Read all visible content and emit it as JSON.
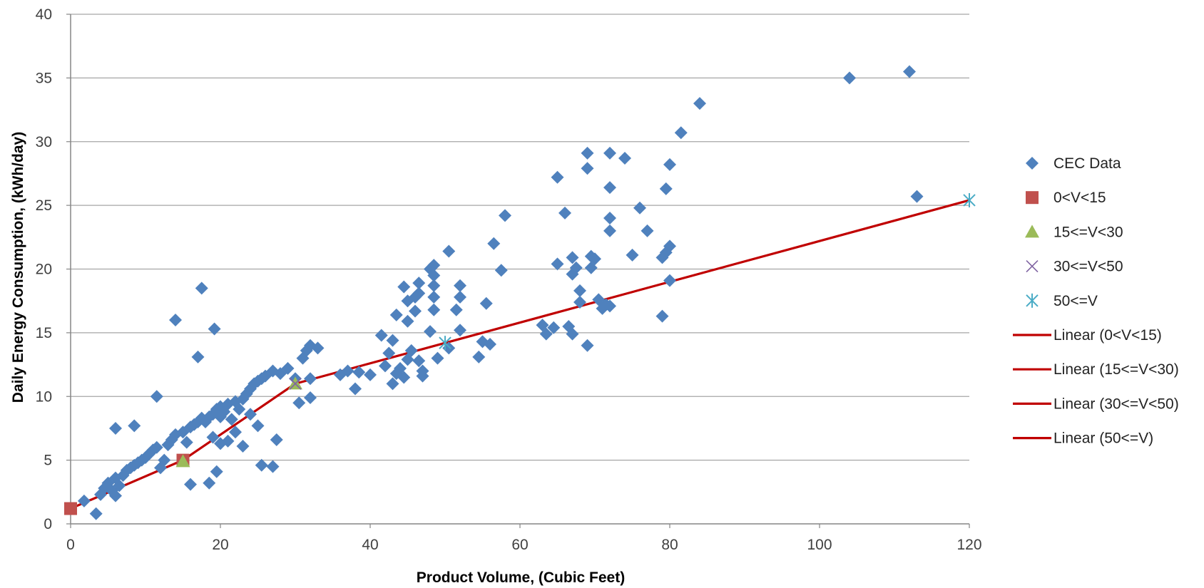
{
  "chart_data": {
    "type": "scatter",
    "xlabel": "Product Volume, (Cubic Feet)",
    "ylabel": "Daily Energy Consumption, (kWh/day)",
    "xlim": [
      0,
      120
    ],
    "ylim": [
      0,
      40
    ],
    "x_ticks": [
      "0",
      "20",
      "40",
      "60",
      "80",
      "100",
      "120"
    ],
    "y_ticks": [
      "0",
      "5",
      "10",
      "15",
      "20",
      "25",
      "30",
      "35",
      "40"
    ],
    "grid": "horizontal",
    "legend_position": "right",
    "colors": {
      "cec": "#4F81BD",
      "s0": "#C0504D",
      "s15": "#9BBB59",
      "s30": "#8064A2",
      "s50": "#4BACC6",
      "trend": "#C00000",
      "grid": "#A6A6A6",
      "axis": "#868686"
    },
    "series": [
      {
        "name": "CEC Data",
        "marker": "diamond",
        "color": "#4F81BD",
        "points": [
          [
            1.8,
            1.8
          ],
          [
            3.4,
            0.8
          ],
          [
            4,
            2.3
          ],
          [
            4.5,
            2.8
          ],
          [
            5,
            3.2
          ],
          [
            5.5,
            2.6
          ],
          [
            6,
            2.2
          ],
          [
            6,
            3.6
          ],
          [
            6.5,
            3.0
          ],
          [
            7,
            3.8
          ],
          [
            7.5,
            4.2
          ],
          [
            8,
            4.4
          ],
          [
            8.5,
            4.6
          ],
          [
            9,
            4.8
          ],
          [
            9.5,
            5.0
          ],
          [
            10,
            5.2
          ],
          [
            10.5,
            5.5
          ],
          [
            11,
            5.8
          ],
          [
            11.5,
            6.0
          ],
          [
            12,
            4.4
          ],
          [
            12.5,
            5.0
          ],
          [
            13,
            6.2
          ],
          [
            13.5,
            6.6
          ],
          [
            14,
            7.0
          ],
          [
            15,
            7.2
          ],
          [
            15.5,
            6.4
          ],
          [
            16,
            7.6
          ],
          [
            16.5,
            7.8
          ],
          [
            17,
            8.0
          ],
          [
            17.5,
            8.3
          ],
          [
            18,
            8.0
          ],
          [
            18.5,
            8.4
          ],
          [
            19,
            8.6
          ],
          [
            19.5,
            9.0
          ],
          [
            20,
            9.2
          ],
          [
            20,
            8.4
          ],
          [
            20.5,
            8.8
          ],
          [
            21,
            9.4
          ],
          [
            21.5,
            8.2
          ],
          [
            22,
            9.6
          ],
          [
            22.5,
            9.0
          ],
          [
            23,
            9.8
          ],
          [
            23.5,
            10.2
          ],
          [
            24,
            10.6
          ],
          [
            24.5,
            11.0
          ],
          [
            25,
            11.2
          ],
          [
            25.5,
            11.4
          ],
          [
            26,
            11.6
          ],
          [
            27,
            12.0
          ],
          [
            28,
            11.8
          ],
          [
            29,
            12.2
          ],
          [
            30,
            11.4
          ],
          [
            31,
            13.0
          ],
          [
            31.5,
            13.6
          ],
          [
            32,
            14.0
          ],
          [
            33,
            13.8
          ],
          [
            19,
            6.8
          ],
          [
            20,
            6.3
          ],
          [
            21,
            6.5
          ],
          [
            22,
            7.2
          ],
          [
            23,
            6.1
          ],
          [
            24,
            8.6
          ],
          [
            25,
            7.7
          ],
          [
            27.5,
            6.6
          ],
          [
            6,
            7.5
          ],
          [
            8.5,
            7.7
          ],
          [
            11.5,
            10.0
          ],
          [
            14,
            16.0
          ],
          [
            17,
            13.1
          ],
          [
            17.5,
            18.5
          ],
          [
            19.2,
            15.3
          ],
          [
            16,
            3.1
          ],
          [
            18.5,
            3.2
          ],
          [
            19.5,
            4.1
          ],
          [
            25.5,
            4.6
          ],
          [
            27,
            4.5
          ],
          [
            30.5,
            9.5
          ],
          [
            32,
            9.9
          ],
          [
            32,
            11.4
          ],
          [
            36,
            11.7
          ],
          [
            37,
            12
          ],
          [
            38,
            10.6
          ],
          [
            38.5,
            11.9
          ],
          [
            40,
            11.7
          ],
          [
            41.5,
            14.8
          ],
          [
            42,
            12.4
          ],
          [
            42.5,
            13.4
          ],
          [
            43,
            11.0
          ],
          [
            43.5,
            11.8
          ],
          [
            43,
            14.4
          ],
          [
            43.5,
            16.4
          ],
          [
            44,
            12.2
          ],
          [
            44.5,
            18.6
          ],
          [
            44.5,
            11.5
          ],
          [
            45,
            12.9
          ],
          [
            45,
            15.9
          ],
          [
            45,
            17.5
          ],
          [
            45.5,
            13.6
          ],
          [
            46,
            16.7
          ],
          [
            46,
            17.8
          ],
          [
            46.5,
            18.1
          ],
          [
            46.5,
            18.9
          ],
          [
            46.5,
            12.8
          ],
          [
            47,
            12.0
          ],
          [
            47,
            11.6
          ],
          [
            48,
            20.0
          ],
          [
            48.5,
            20.3
          ],
          [
            48.5,
            19.5
          ],
          [
            48.5,
            18.7
          ],
          [
            48.5,
            17.8
          ],
          [
            48.5,
            16.8
          ],
          [
            48,
            15.1
          ],
          [
            49,
            13.0
          ],
          [
            50.5,
            21.4
          ],
          [
            50.5,
            13.8
          ],
          [
            51.5,
            16.8
          ],
          [
            52,
            17.8
          ],
          [
            52,
            18.7
          ],
          [
            52,
            15.2
          ],
          [
            54.5,
            13.1
          ],
          [
            55,
            14.3
          ],
          [
            55.5,
            17.3
          ],
          [
            56,
            14.1
          ],
          [
            56.5,
            22.0
          ],
          [
            57.5,
            19.9
          ],
          [
            58,
            24.2
          ],
          [
            63,
            15.6
          ],
          [
            63.5,
            14.9
          ],
          [
            64.5,
            15.4
          ],
          [
            65,
            20.4
          ],
          [
            65,
            27.2
          ],
          [
            66,
            24.4
          ],
          [
            66.5,
            15.5
          ],
          [
            67,
            14.9
          ],
          [
            67,
            19.6
          ],
          [
            67,
            20.9
          ],
          [
            67.5,
            20.1
          ],
          [
            68,
            17.4
          ],
          [
            68,
            18.3
          ],
          [
            69,
            27.9
          ],
          [
            69,
            29.1
          ],
          [
            69,
            14.0
          ],
          [
            69.5,
            20.1
          ],
          [
            69.5,
            21.0
          ],
          [
            70,
            20.8
          ],
          [
            70.5,
            17.6
          ],
          [
            71,
            16.9
          ],
          [
            71.5,
            17.2
          ],
          [
            72,
            23.0
          ],
          [
            72,
            24.0
          ],
          [
            72,
            26.4
          ],
          [
            72,
            29.1
          ],
          [
            72,
            17.1
          ],
          [
            74,
            28.7
          ],
          [
            75,
            21.1
          ],
          [
            76,
            24.8
          ],
          [
            77,
            23.0
          ],
          [
            79,
            16.3
          ],
          [
            79,
            20.9
          ],
          [
            79.5,
            21.3
          ],
          [
            79.5,
            26.3
          ],
          [
            80,
            28.2
          ],
          [
            80,
            21.8
          ],
          [
            80,
            19.1
          ],
          [
            81.5,
            30.7
          ],
          [
            84,
            33.0
          ],
          [
            104,
            35.0
          ],
          [
            112,
            35.5
          ],
          [
            113,
            25.7
          ]
        ]
      },
      {
        "name": "0<V<15",
        "marker": "square",
        "color": "#C0504D",
        "points": [
          [
            0,
            1.2
          ],
          [
            15,
            5.0
          ]
        ]
      },
      {
        "name": "15<=V<30",
        "marker": "triangle",
        "color": "#9BBB59",
        "points": [
          [
            15,
            4.9
          ],
          [
            30,
            11.0
          ]
        ]
      },
      {
        "name": "30<=V<50",
        "marker": "x",
        "color": "#8064A2",
        "points": [
          [
            30,
            11.0
          ],
          [
            50,
            14.2
          ]
        ]
      },
      {
        "name": "50<=V",
        "marker": "star",
        "color": "#4BACC6",
        "points": [
          [
            50,
            14.2
          ],
          [
            120,
            25.4
          ]
        ]
      }
    ],
    "trendlines": [
      {
        "name": "Linear (0<V<15)",
        "color": "#C00000",
        "points": [
          [
            0,
            1.2
          ],
          [
            15,
            5.0
          ]
        ]
      },
      {
        "name": "Linear (15<=V<30)",
        "color": "#C00000",
        "points": [
          [
            15,
            5.0
          ],
          [
            30,
            11.0
          ]
        ]
      },
      {
        "name": "Linear (30<=V<50)",
        "color": "#C00000",
        "points": [
          [
            30,
            11.0
          ],
          [
            50,
            14.2
          ]
        ]
      },
      {
        "name": "Linear (50<=V)",
        "color": "#C00000",
        "points": [
          [
            50,
            14.2
          ],
          [
            120,
            25.4
          ]
        ]
      }
    ]
  }
}
